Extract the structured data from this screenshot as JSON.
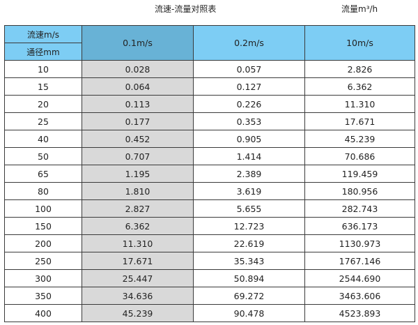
{
  "title": "流速-流量对照表",
  "unit": "流量m³/h",
  "header": {
    "speed_label": "流速m/s",
    "diameter_label": "通径mm",
    "cols": [
      "0.1m/s",
      "0.2m/s",
      "10m/s"
    ]
  },
  "colors": {
    "header": "#7dcdf4",
    "header_highlight": "#68b2d6",
    "highlight_column": "#d9d9d9"
  },
  "rows": [
    [
      "10",
      "0.028",
      "0.057",
      "2.826"
    ],
    [
      "15",
      "0.064",
      "0.127",
      "6.362"
    ],
    [
      "20",
      "0.113",
      "0.226",
      "11.310"
    ],
    [
      "25",
      "0.177",
      "0.353",
      "17.671"
    ],
    [
      "40",
      "0.452",
      "0.905",
      "45.239"
    ],
    [
      "50",
      "0.707",
      "1.414",
      "70.686"
    ],
    [
      "65",
      "1.195",
      "2.389",
      "119.459"
    ],
    [
      "80",
      "1.810",
      "3.619",
      "180.956"
    ],
    [
      "100",
      "2.827",
      "5.655",
      "282.743"
    ],
    [
      "150",
      "6.362",
      "12.723",
      "636.173"
    ],
    [
      "200",
      "11.310",
      "22.619",
      "1130.973"
    ],
    [
      "250",
      "17.671",
      "35.343",
      "1767.146"
    ],
    [
      "300",
      "25.447",
      "50.894",
      "2544.690"
    ],
    [
      "350",
      "34.636",
      "69.272",
      "3463.606"
    ],
    [
      "400",
      "45.239",
      "90.478",
      "4523.893"
    ]
  ]
}
